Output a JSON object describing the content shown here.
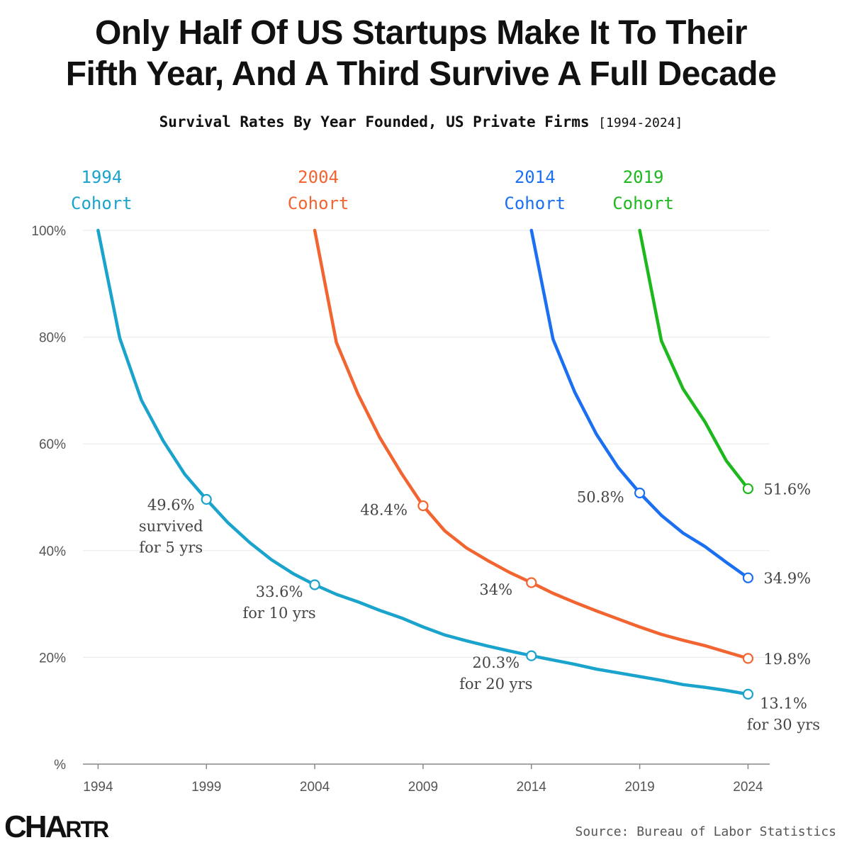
{
  "header": {
    "title_line1": "Only Half Of US Startups Make It To Their",
    "title_line2": "Fifth Year, And A Third Survive A Full Decade",
    "subtitle": "Survival Rates By Year Founded, US Private Firms",
    "subtitle_range": "[1994-2024]"
  },
  "footer": {
    "logo": "CHARTR",
    "source": "Source: Bureau of Labor Statistics"
  },
  "chart_data": {
    "type": "line",
    "title": "Only Half Of US Startups Make It To Their Fifth Year, And A Third Survive A Full Decade",
    "subtitle": "Survival Rates By Year Founded, US Private Firms [1994-2024]",
    "xlabel": "",
    "ylabel": "",
    "xlim": [
      1993.3,
      2025.0
    ],
    "ylim": [
      0,
      100
    ],
    "x_ticks": [
      1994,
      1999,
      2004,
      2009,
      2014,
      2019,
      2024
    ],
    "y_ticks": [
      {
        "value": 0,
        "label": "%"
      },
      {
        "value": 20,
        "label": "20%"
      },
      {
        "value": 40,
        "label": "40%"
      },
      {
        "value": 60,
        "label": "60%"
      },
      {
        "value": 80,
        "label": "80%"
      },
      {
        "value": 100,
        "label": "100%"
      }
    ],
    "grid": true,
    "series": [
      {
        "name": "1994 Cohort",
        "label_year": "1994",
        "label_word": "Cohort",
        "color": "#1aa3cc",
        "x": [
          1994,
          1995,
          1996,
          1997,
          1998,
          1999,
          2000,
          2001,
          2002,
          2003,
          2004,
          2005,
          2006,
          2007,
          2008,
          2009,
          2010,
          2011,
          2012,
          2013,
          2014,
          2015,
          2016,
          2017,
          2018,
          2019,
          2020,
          2021,
          2022,
          2023,
          2024
        ],
        "y": [
          100,
          79.8,
          68.2,
          60.6,
          54.3,
          49.6,
          45.2,
          41.5,
          38.3,
          35.7,
          33.6,
          31.8,
          30.4,
          28.8,
          27.4,
          25.7,
          24.2,
          23.1,
          22.1,
          21.2,
          20.3,
          19.5,
          18.7,
          17.8,
          17.1,
          16.4,
          15.7,
          14.9,
          14.4,
          13.8,
          13.1
        ]
      },
      {
        "name": "2004 Cohort",
        "label_year": "2004",
        "label_word": "Cohort",
        "color": "#f26430",
        "x": [
          2004,
          2005,
          2006,
          2007,
          2008,
          2009,
          2010,
          2011,
          2012,
          2013,
          2014,
          2015,
          2016,
          2017,
          2018,
          2019,
          2020,
          2021,
          2022,
          2023,
          2024
        ],
        "y": [
          100,
          79.0,
          69.3,
          61.2,
          54.5,
          48.4,
          43.7,
          40.5,
          38.1,
          35.9,
          34.0,
          32.0,
          30.3,
          28.7,
          27.2,
          25.7,
          24.3,
          23.2,
          22.2,
          21.0,
          19.8
        ]
      },
      {
        "name": "2014 Cohort",
        "label_year": "2014",
        "label_word": "Cohort",
        "color": "#1a6ff2",
        "x": [
          2014,
          2015,
          2016,
          2017,
          2018,
          2019,
          2020,
          2021,
          2022,
          2023,
          2024
        ],
        "y": [
          100,
          79.6,
          69.7,
          61.8,
          55.6,
          50.8,
          46.6,
          43.3,
          40.8,
          37.8,
          34.9
        ]
      },
      {
        "name": "2019 Cohort",
        "label_year": "2019",
        "label_word": "Cohort",
        "color": "#1db81d",
        "x": [
          2019,
          2020,
          2021,
          2022,
          2023,
          2024
        ],
        "y": [
          100,
          79.3,
          70.3,
          64.2,
          56.8,
          51.6
        ]
      }
    ],
    "annotations": [
      {
        "series": 0,
        "x": 1999,
        "y": 49.6,
        "lines": [
          "49.6%",
          "survived",
          "for 5 yrs"
        ],
        "align": "right"
      },
      {
        "series": 0,
        "x": 2004,
        "y": 33.6,
        "lines": [
          "33.6%",
          "for 10 yrs"
        ],
        "align": "below-left"
      },
      {
        "series": 0,
        "x": 2014,
        "y": 20.3,
        "lines": [
          "20.3%",
          "for 20 yrs"
        ],
        "align": "below-left"
      },
      {
        "series": 0,
        "x": 2024,
        "y": 13.1,
        "lines": [
          "13.1%",
          "for 30 yrs"
        ],
        "align": "below-right"
      },
      {
        "series": 1,
        "x": 2009,
        "y": 48.4,
        "lines": [
          "48.4%"
        ],
        "align": "left"
      },
      {
        "series": 1,
        "x": 2014,
        "y": 34.0,
        "lines": [
          "34%"
        ],
        "align": "below-left"
      },
      {
        "series": 1,
        "x": 2024,
        "y": 19.8,
        "lines": [
          "19.8%"
        ],
        "align": "right"
      },
      {
        "series": 2,
        "x": 2019,
        "y": 50.8,
        "lines": [
          "50.8%"
        ],
        "align": "left"
      },
      {
        "series": 2,
        "x": 2024,
        "y": 34.9,
        "lines": [
          "34.9%"
        ],
        "align": "right"
      },
      {
        "series": 3,
        "x": 2024,
        "y": 51.6,
        "lines": [
          "51.6%"
        ],
        "align": "right"
      }
    ]
  }
}
